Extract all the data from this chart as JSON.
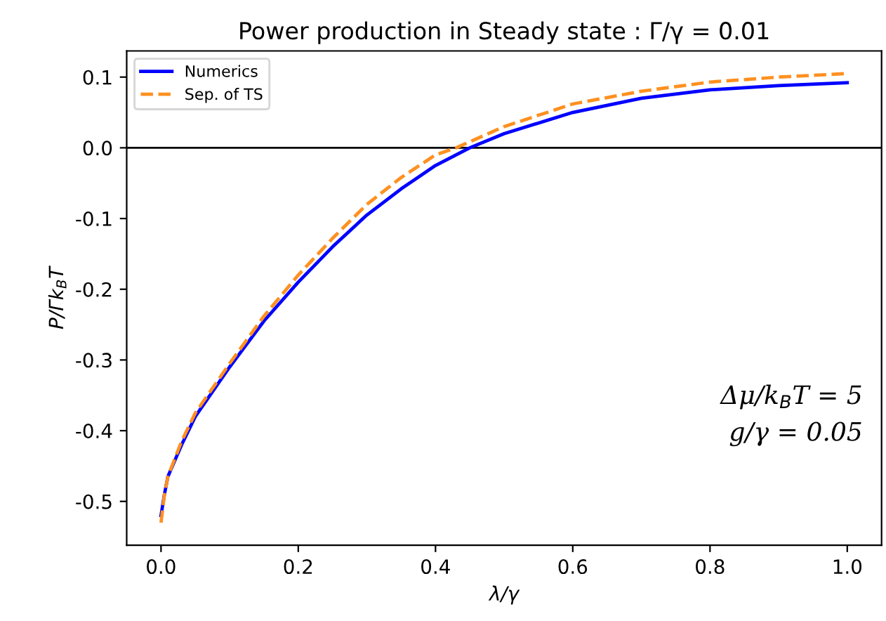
{
  "chart_data": {
    "type": "line",
    "title": "Power production in Steady state : Γ/γ = 0.01",
    "xlabel": "λ/γ",
    "ylabel": "P/Γk$_{B}$T",
    "xlim": [
      -0.05,
      1.05
    ],
    "ylim": [
      -0.562,
      0.137
    ],
    "xticks": [
      {
        "value": 0,
        "label": "0.0"
      },
      0.2,
      0.4,
      0.6,
      0.8,
      {
        "value": 1,
        "label": "1.0"
      }
    ],
    "yticks": [
      -0.5,
      -0.4,
      -0.3,
      -0.2,
      -0.1,
      {
        "value": 0,
        "label": "0.0"
      },
      0.1
    ],
    "legend": "top left",
    "grid": false,
    "ref_lines": [
      {
        "axis": "y",
        "value": 0,
        "color": "#000000"
      }
    ],
    "annotations": [
      "Δμ/k$_{B}$T = 5",
      "g/γ = 0.05"
    ],
    "series": [
      {
        "name": "Numerics",
        "color": "#0000ff",
        "line_style": "solid",
        "x": [
          0,
          0.005,
          0.01,
          0.03,
          0.05,
          0.1,
          0.15,
          0.2,
          0.25,
          0.3,
          0.35,
          0.4,
          0.45,
          0.5,
          0.6,
          0.7,
          0.8,
          0.9,
          1.0
        ],
        "values": [
          -0.52,
          -0.49,
          -0.465,
          -0.42,
          -0.38,
          -0.31,
          -0.245,
          -0.19,
          -0.14,
          -0.095,
          -0.058,
          -0.025,
          0.0,
          0.02,
          0.05,
          0.07,
          0.082,
          0.088,
          0.092
        ]
      },
      {
        "name": "Sep. of TS",
        "color": "#ff9020",
        "line_style": "dashed",
        "x": [
          0,
          0.005,
          0.01,
          0.03,
          0.05,
          0.1,
          0.15,
          0.2,
          0.25,
          0.3,
          0.35,
          0.4,
          0.43,
          0.5,
          0.6,
          0.7,
          0.8,
          0.9,
          1.0
        ],
        "values": [
          -0.53,
          -0.49,
          -0.465,
          -0.415,
          -0.375,
          -0.305,
          -0.238,
          -0.18,
          -0.128,
          -0.08,
          -0.042,
          -0.01,
          0.0,
          0.03,
          0.062,
          0.08,
          0.093,
          0.1,
          0.105
        ]
      }
    ]
  }
}
